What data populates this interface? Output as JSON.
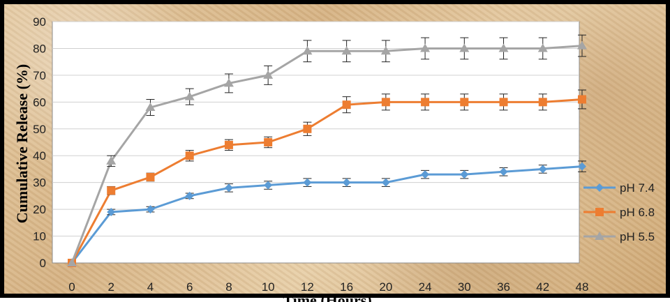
{
  "chart_data": {
    "type": "line",
    "title": "",
    "xlabel": "Time (Hours)",
    "ylabel": "Cumulative Release (%)",
    "categories": [
      "0",
      "2",
      "4",
      "6",
      "8",
      "10",
      "12",
      "16",
      "20",
      "24",
      "30",
      "36",
      "42",
      "48"
    ],
    "ylim": [
      0,
      90
    ],
    "yticks": [
      0,
      10,
      20,
      30,
      40,
      50,
      60,
      70,
      80,
      90
    ],
    "grid": "horizontal",
    "legend_position": "right",
    "series": [
      {
        "name": "pH 7.4",
        "color": "#5B9BD5",
        "marker": "diamond",
        "values": [
          0,
          19,
          20,
          25,
          28,
          29,
          30,
          30,
          30,
          33,
          33,
          34,
          35,
          36
        ],
        "errors": [
          0,
          1,
          1,
          1,
          1.5,
          1.5,
          1.5,
          1.5,
          1.5,
          1.5,
          1.5,
          1.5,
          1.5,
          2
        ]
      },
      {
        "name": "pH 6.8",
        "color": "#ED7D31",
        "marker": "square",
        "values": [
          0,
          27,
          32,
          40,
          44,
          45,
          50,
          59,
          60,
          60,
          60,
          60,
          60,
          61
        ],
        "errors": [
          0,
          1.5,
          1.5,
          2,
          2,
          2,
          2.5,
          3,
          3,
          3,
          3,
          3,
          3,
          3.5
        ]
      },
      {
        "name": "pH 5.5",
        "color": "#A5A5A5",
        "marker": "triangle",
        "values": [
          0,
          38,
          58,
          62,
          67,
          70,
          79,
          79,
          79,
          80,
          80,
          80,
          80,
          81
        ],
        "errors": [
          0,
          2,
          3,
          3,
          3.5,
          3.5,
          4,
          4,
          4,
          4,
          4,
          4,
          4,
          4
        ]
      }
    ]
  }
}
